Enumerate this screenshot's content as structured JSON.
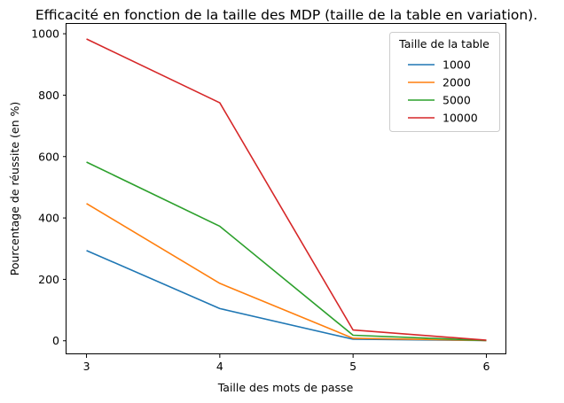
{
  "chart_data": {
    "type": "line",
    "title": "Efficacité en fonction de la taille des MDP (taille de la table en variation).",
    "xlabel": "Taille des mots de passe",
    "ylabel": "Pourcentage de réussite (en %)",
    "x": [
      3,
      4,
      5,
      6
    ],
    "xticks": [
      3,
      4,
      5,
      6
    ],
    "yticks": [
      0,
      200,
      400,
      600,
      800,
      1000
    ],
    "xlim": [
      2.85,
      6.15
    ],
    "ylim": [
      -44,
      1032
    ],
    "grid": false,
    "legend": {
      "title": "Taille de la table",
      "placement": "top-right"
    },
    "series": [
      {
        "name": "1000",
        "color": "#1f77b4",
        "values": [
          294,
          105,
          5,
          1
        ]
      },
      {
        "name": "2000",
        "color": "#ff7f0e",
        "values": [
          447,
          187,
          8,
          1
        ]
      },
      {
        "name": "5000",
        "color": "#2ca02c",
        "values": [
          582,
          373,
          18,
          1
        ]
      },
      {
        "name": "10000",
        "color": "#d62728",
        "values": [
          983,
          775,
          35,
          2
        ]
      }
    ]
  }
}
